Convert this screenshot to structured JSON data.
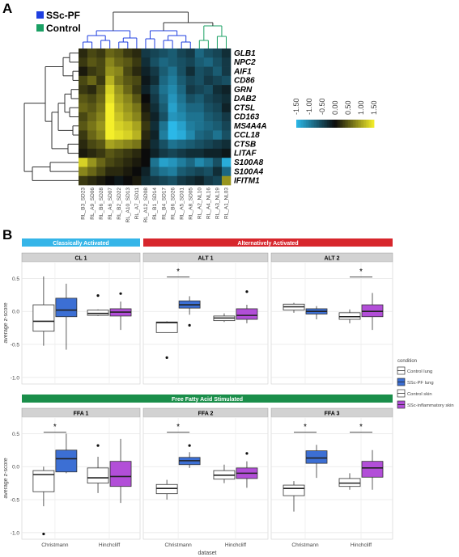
{
  "panel_labels": {
    "a": "A",
    "b": "B"
  },
  "legend_a": [
    {
      "label": "SSc-PF",
      "color": "#1f3fe0"
    },
    {
      "label": "Control",
      "color": "#1aa064"
    }
  ],
  "colors": {
    "ssc": "#1f3fe0",
    "control": "#1aa064",
    "heat_neg": "#2bb8e8",
    "heat_zero": "#0b0b0b",
    "heat_pos": "#f5ef2a",
    "strip_classical": "#35b5e8",
    "strip_alt": "#d7262c",
    "strip_ffa": "#1a8e4a",
    "box_control_lung": "#ffffff",
    "box_ssc_pf_lung": "#3c6fd4",
    "box_control_skin": "#ffffff",
    "box_ssc_skin": "#b24ed8"
  },
  "color_key": {
    "ticks": [
      "-1.50",
      "-1.00",
      "-0.50",
      "0.00",
      "0.50",
      "1.00",
      "1.50"
    ]
  },
  "chart_data": [
    {
      "type": "heatmap",
      "title": "",
      "genes": [
        "GLB1",
        "NPC2",
        "AIF1",
        "CD86",
        "GRN",
        "DAB2",
        "CTSL",
        "CD163",
        "MS4A4A",
        "CCL18",
        "CTSB",
        "LITAF",
        "S100A8",
        "S100A4",
        "IFITM1"
      ],
      "samples": [
        "RL_B3_SD23",
        "RL_A9_SD06",
        "RL_B6_SD28",
        "RL_A6_SD07",
        "RL_B2_SD22",
        "RL_A10_SD13",
        "RL_A7_SD11",
        "RL_A12_SD08",
        "RL_B1_SD14",
        "RL_B4_SD17",
        "RL_B6_SD26",
        "RL_A5_SD31",
        "RL_A8_SD05",
        "RL_A2_NL10",
        "RL_A4_NL16",
        "RL_A3_NL19",
        "RL_A1_NL03"
      ],
      "sample_groups": [
        "SSc-PF",
        "SSc-PF",
        "SSc-PF",
        "SSc-PF",
        "SSc-PF",
        "SSc-PF",
        "SSc-PF",
        "SSc-PF",
        "SSc-PF",
        "SSc-PF",
        "SSc-PF",
        "SSc-PF",
        "SSc-PF",
        "Control",
        "Control",
        "Control",
        "Control"
      ],
      "color_range": [
        -1.5,
        1.5
      ],
      "values": [
        [
          0.2,
          0.4,
          0.3,
          0.6,
          0.5,
          0.3,
          0.2,
          -0.4,
          -0.5,
          -0.6,
          -0.7,
          -0.5,
          -0.4,
          -0.8,
          -0.6,
          -0.5,
          -0.3
        ],
        [
          0.3,
          0.5,
          0.4,
          0.8,
          0.6,
          0.5,
          0.3,
          -0.3,
          -0.6,
          -0.8,
          -0.7,
          -0.6,
          -0.5,
          -0.7,
          -0.8,
          -0.6,
          -0.4
        ],
        [
          0.1,
          0.3,
          0.4,
          0.9,
          0.8,
          0.4,
          0.2,
          -0.2,
          -0.4,
          -0.7,
          -0.9,
          -0.6,
          -0.3,
          -0.6,
          -0.5,
          -0.7,
          -0.4
        ],
        [
          0.4,
          0.6,
          0.3,
          1.1,
          0.7,
          0.5,
          0.4,
          -0.1,
          -0.3,
          -0.8,
          -1.0,
          -0.7,
          -0.5,
          -0.6,
          -0.4,
          -0.5,
          -0.6
        ],
        [
          0.3,
          0.2,
          0.5,
          1.3,
          0.9,
          0.6,
          0.3,
          -0.2,
          -0.5,
          -0.9,
          -1.1,
          -0.8,
          -0.4,
          -0.5,
          -0.6,
          -0.3,
          -0.2
        ],
        [
          0.5,
          0.4,
          0.6,
          1.4,
          1.0,
          0.8,
          0.5,
          0.0,
          -0.4,
          -0.8,
          -1.2,
          -0.9,
          -0.6,
          -0.7,
          -0.5,
          -0.4,
          -0.3
        ],
        [
          0.6,
          0.5,
          0.7,
          1.5,
          1.1,
          0.9,
          0.7,
          0.1,
          -0.3,
          -0.7,
          -1.3,
          -1.0,
          -0.8,
          -0.8,
          -0.6,
          -0.5,
          -0.2
        ],
        [
          0.4,
          0.6,
          0.8,
          1.5,
          1.2,
          1.0,
          0.8,
          0.2,
          -0.2,
          -0.6,
          -1.2,
          -1.1,
          -0.9,
          -0.9,
          -0.7,
          -0.6,
          -0.4
        ],
        [
          0.5,
          0.7,
          0.9,
          1.6,
          1.3,
          1.2,
          1.0,
          0.3,
          -0.3,
          -0.9,
          -1.5,
          -1.3,
          -1.0,
          -0.9,
          -0.8,
          -0.7,
          -0.5
        ],
        [
          0.3,
          0.6,
          0.8,
          1.5,
          1.4,
          1.3,
          1.1,
          0.2,
          -0.2,
          -1.0,
          -1.6,
          -1.4,
          -1.1,
          -0.8,
          -0.7,
          -0.9,
          -0.6
        ],
        [
          0.2,
          0.4,
          0.5,
          1.0,
          0.9,
          0.8,
          0.7,
          0.1,
          -0.3,
          -0.6,
          -0.9,
          -0.8,
          -0.7,
          -0.6,
          -0.5,
          -0.4,
          -0.3
        ],
        [
          0.1,
          0.2,
          0.3,
          0.5,
          0.4,
          0.3,
          0.2,
          0.0,
          -0.2,
          -0.4,
          -0.5,
          -0.4,
          -0.3,
          -0.3,
          -0.2,
          -0.2,
          -0.1
        ],
        [
          1.3,
          0.9,
          0.6,
          0.4,
          0.3,
          0.2,
          0.1,
          0.0,
          -0.9,
          -1.3,
          -1.2,
          -1.0,
          -0.8,
          -1.1,
          -0.9,
          -0.6,
          -1.4
        ],
        [
          0.8,
          0.6,
          0.4,
          0.2,
          0.2,
          0.1,
          0.0,
          -0.2,
          -0.7,
          -0.9,
          -1.0,
          -0.7,
          -0.6,
          -0.5,
          -0.6,
          -0.3,
          -0.8
        ],
        [
          0.3,
          0.2,
          0.1,
          0.0,
          -0.1,
          0.0,
          0.1,
          -0.3,
          -0.4,
          -0.5,
          -0.6,
          -0.4,
          -0.3,
          -0.2,
          -0.4,
          -0.5,
          0.9
        ]
      ]
    },
    {
      "type": "box",
      "ylabel": "average z-score",
      "xlabel": "dataset",
      "ylim": [
        -1.1,
        0.75
      ],
      "yticks": [
        -1.0,
        -0.5,
        0.0,
        0.5
      ],
      "ytick_labels": [
        "-1.0",
        "-0.5",
        "0.0",
        "0.5"
      ],
      "categories": [
        "Christmann",
        "Hinchcliff"
      ],
      "legend": {
        "title": "condition",
        "items": [
          {
            "key": "control_lung",
            "label": "Control lung"
          },
          {
            "key": "ssc_pf_lung",
            "label": "SSc-PF lung"
          },
          {
            "key": "control_skin",
            "label": "Control skin"
          },
          {
            "key": "ssc_skin",
            "label": "SSc-inflammatory skin"
          }
        ]
      },
      "groups": [
        {
          "label": "Classically Activated",
          "strip": "classical"
        },
        {
          "label": "Alternatively Activated",
          "strip": "alt"
        },
        {
          "label": "Free Fatty Acid Stimulated",
          "strip": "ffa"
        }
      ],
      "facets": [
        {
          "row": 0,
          "col": 0,
          "title": "CL 1",
          "star": [],
          "boxes": [
            {
              "cat": 0,
              "cond": "control_lung",
              "low": -0.52,
              "q1": -0.3,
              "med": -0.15,
              "q3": 0.1,
              "high": 0.53,
              "out": []
            },
            {
              "cat": 0,
              "cond": "ssc_pf_lung",
              "low": -0.58,
              "q1": -0.08,
              "med": 0.02,
              "q3": 0.2,
              "high": 0.42,
              "out": []
            },
            {
              "cat": 1,
              "cond": "control_skin",
              "low": -0.07,
              "q1": -0.06,
              "med": -0.03,
              "q3": 0.02,
              "high": 0.03,
              "out": [
                0.24
              ]
            },
            {
              "cat": 1,
              "cond": "ssc_skin",
              "low": -0.28,
              "q1": -0.07,
              "med": -0.01,
              "q3": 0.04,
              "high": 0.15,
              "out": [
                0.27
              ]
            }
          ]
        },
        {
          "row": 0,
          "col": 1,
          "title": "ALT 1",
          "star": [
            0
          ],
          "boxes": [
            {
              "cat": 0,
              "cond": "control_lung",
              "low": -0.32,
              "q1": -0.32,
              "med": -0.17,
              "q3": -0.16,
              "high": -0.15,
              "out": [
                -0.7
              ]
            },
            {
              "cat": 0,
              "cond": "ssc_pf_lung",
              "low": -0.05,
              "q1": 0.05,
              "med": 0.1,
              "q3": 0.16,
              "high": 0.23,
              "out": [
                -0.21
              ]
            },
            {
              "cat": 1,
              "cond": "control_skin",
              "low": -0.16,
              "q1": -0.14,
              "med": -0.1,
              "q3": -0.07,
              "high": -0.03,
              "out": []
            },
            {
              "cat": 1,
              "cond": "ssc_skin",
              "low": -0.18,
              "q1": -0.12,
              "med": -0.06,
              "q3": 0.04,
              "high": 0.1,
              "out": [
                0.3
              ]
            }
          ]
        },
        {
          "row": 0,
          "col": 2,
          "title": "ALT 2",
          "star": [
            1
          ],
          "boxes": [
            {
              "cat": 0,
              "cond": "control_lung",
              "low": -0.02,
              "q1": 0.02,
              "med": 0.07,
              "q3": 0.11,
              "high": 0.13,
              "out": []
            },
            {
              "cat": 0,
              "cond": "ssc_pf_lung",
              "low": -0.12,
              "q1": -0.04,
              "med": 0.0,
              "q3": 0.04,
              "high": 0.08,
              "out": []
            },
            {
              "cat": 1,
              "cond": "control_skin",
              "low": -0.18,
              "q1": -0.12,
              "med": -0.08,
              "q3": -0.02,
              "high": 0.03,
              "out": []
            },
            {
              "cat": 1,
              "cond": "ssc_skin",
              "low": -0.28,
              "q1": -0.08,
              "med": 0.0,
              "q3": 0.1,
              "high": 0.28,
              "out": []
            }
          ]
        },
        {
          "row": 1,
          "col": 0,
          "title": "FFA 1",
          "star": [
            0
          ],
          "boxes": [
            {
              "cat": 0,
              "cond": "control_lung",
              "low": -0.6,
              "q1": -0.38,
              "med": -0.12,
              "q3": -0.06,
              "high": 0.0,
              "out": [
                -1.02
              ]
            },
            {
              "cat": 0,
              "cond": "ssc_pf_lung",
              "low": -0.1,
              "q1": -0.08,
              "med": 0.12,
              "q3": 0.25,
              "high": 0.5,
              "out": []
            },
            {
              "cat": 1,
              "cond": "control_skin",
              "low": -0.4,
              "q1": -0.25,
              "med": -0.17,
              "q3": -0.02,
              "high": 0.15,
              "out": [
                0.32
              ]
            },
            {
              "cat": 1,
              "cond": "ssc_skin",
              "low": -0.55,
              "q1": -0.3,
              "med": -0.15,
              "q3": 0.08,
              "high": 0.42,
              "out": []
            }
          ]
        },
        {
          "row": 1,
          "col": 1,
          "title": "FFA 2",
          "star": [
            0
          ],
          "boxes": [
            {
              "cat": 0,
              "cond": "control_lung",
              "low": -0.5,
              "q1": -0.41,
              "med": -0.33,
              "q3": -0.27,
              "high": -0.2,
              "out": []
            },
            {
              "cat": 0,
              "cond": "ssc_pf_lung",
              "low": -0.02,
              "q1": 0.03,
              "med": 0.09,
              "q3": 0.14,
              "high": 0.22,
              "out": [
                0.32
              ]
            },
            {
              "cat": 1,
              "cond": "control_skin",
              "low": -0.25,
              "q1": -0.19,
              "med": -0.13,
              "q3": -0.06,
              "high": 0.03,
              "out": []
            },
            {
              "cat": 1,
              "cond": "ssc_skin",
              "low": -0.32,
              "q1": -0.18,
              "med": -0.1,
              "q3": -0.02,
              "high": 0.08,
              "out": [
                0.2
              ]
            }
          ]
        },
        {
          "row": 1,
          "col": 2,
          "title": "FFA 3",
          "star": [
            0,
            1
          ],
          "boxes": [
            {
              "cat": 0,
              "cond": "control_lung",
              "low": -0.68,
              "q1": -0.44,
              "med": -0.33,
              "q3": -0.28,
              "high": -0.22,
              "out": []
            },
            {
              "cat": 0,
              "cond": "ssc_pf_lung",
              "low": -0.17,
              "q1": 0.05,
              "med": 0.13,
              "q3": 0.24,
              "high": 0.33,
              "out": []
            },
            {
              "cat": 1,
              "cond": "control_skin",
              "low": -0.35,
              "q1": -0.3,
              "med": -0.25,
              "q3": -0.18,
              "high": -0.1,
              "out": []
            },
            {
              "cat": 1,
              "cond": "ssc_skin",
              "low": -0.35,
              "q1": -0.16,
              "med": -0.02,
              "q3": 0.08,
              "high": 0.25,
              "out": []
            }
          ]
        }
      ]
    }
  ]
}
